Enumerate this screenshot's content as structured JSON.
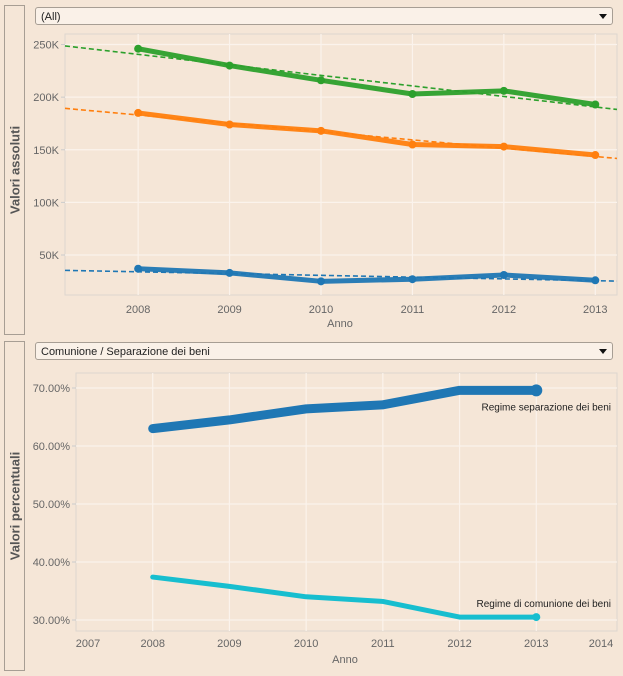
{
  "panels": [
    {
      "side_label": "Valori assoluti",
      "filter": {
        "selected": "(All)"
      }
    },
    {
      "side_label": "Valori percentuali",
      "filter": {
        "selected": "Comunione / Separazione dei beni"
      }
    }
  ],
  "chart_data": [
    {
      "type": "line",
      "title": "",
      "xlabel": "Anno",
      "ylabel": "Valori assoluti",
      "x": [
        2008,
        2009,
        2010,
        2011,
        2012,
        2013
      ],
      "x_ticks": [
        "2008",
        "2009",
        "2010",
        "2011",
        "2012",
        "2013"
      ],
      "y_ticks": [
        "50K",
        "100K",
        "150K",
        "200K",
        "250K"
      ],
      "y_tick_values": [
        50000,
        100000,
        150000,
        200000,
        250000
      ],
      "ylim": [
        12000,
        260000
      ],
      "xlim": [
        2007.2,
        2013.15
      ],
      "grid": true,
      "trend_lines": true,
      "series": [
        {
          "name": "green",
          "color": "#2ca02c",
          "values": [
            246000,
            230000,
            216000,
            203000,
            206000,
            193000
          ]
        },
        {
          "name": "orange",
          "color": "#ff7f0e",
          "values": [
            185000,
            174000,
            168000,
            155000,
            153000,
            145000
          ]
        },
        {
          "name": "blue",
          "color": "#1f77b4",
          "values": [
            37000,
            33000,
            25000,
            27000,
            31000,
            26000
          ]
        }
      ]
    },
    {
      "type": "line",
      "title": "",
      "xlabel": "Anno",
      "ylabel": "Valori percentuali",
      "x": [
        2008,
        2009,
        2010,
        2011,
        2012,
        2013
      ],
      "x_ticks": [
        "2007",
        "2008",
        "2009",
        "2010",
        "2011",
        "2012",
        "2013",
        "2014"
      ],
      "x_tick_values": [
        2007,
        2008,
        2009,
        2010,
        2011,
        2012,
        2013,
        2014
      ],
      "y_ticks": [
        "30.00%",
        "40.00%",
        "50.00%",
        "60.00%",
        "70.00%"
      ],
      "y_tick_values": [
        30,
        40,
        50,
        60,
        70
      ],
      "ylim": [
        28,
        72
      ],
      "xlim": [
        2007,
        2014
      ],
      "grid": true,
      "series": [
        {
          "name": "Regime separazione dei beni",
          "color": "#1f77b4",
          "values": [
            63.0,
            64.5,
            66.4,
            67.1,
            69.6,
            69.6
          ]
        },
        {
          "name": "Regime di comunione dei beni",
          "color": "#17becf",
          "values": [
            37.4,
            35.8,
            34.0,
            33.2,
            30.5,
            30.5
          ]
        }
      ],
      "annotations": [
        "Regime separazione dei beni",
        "Regime di comunione dei beni"
      ]
    }
  ]
}
